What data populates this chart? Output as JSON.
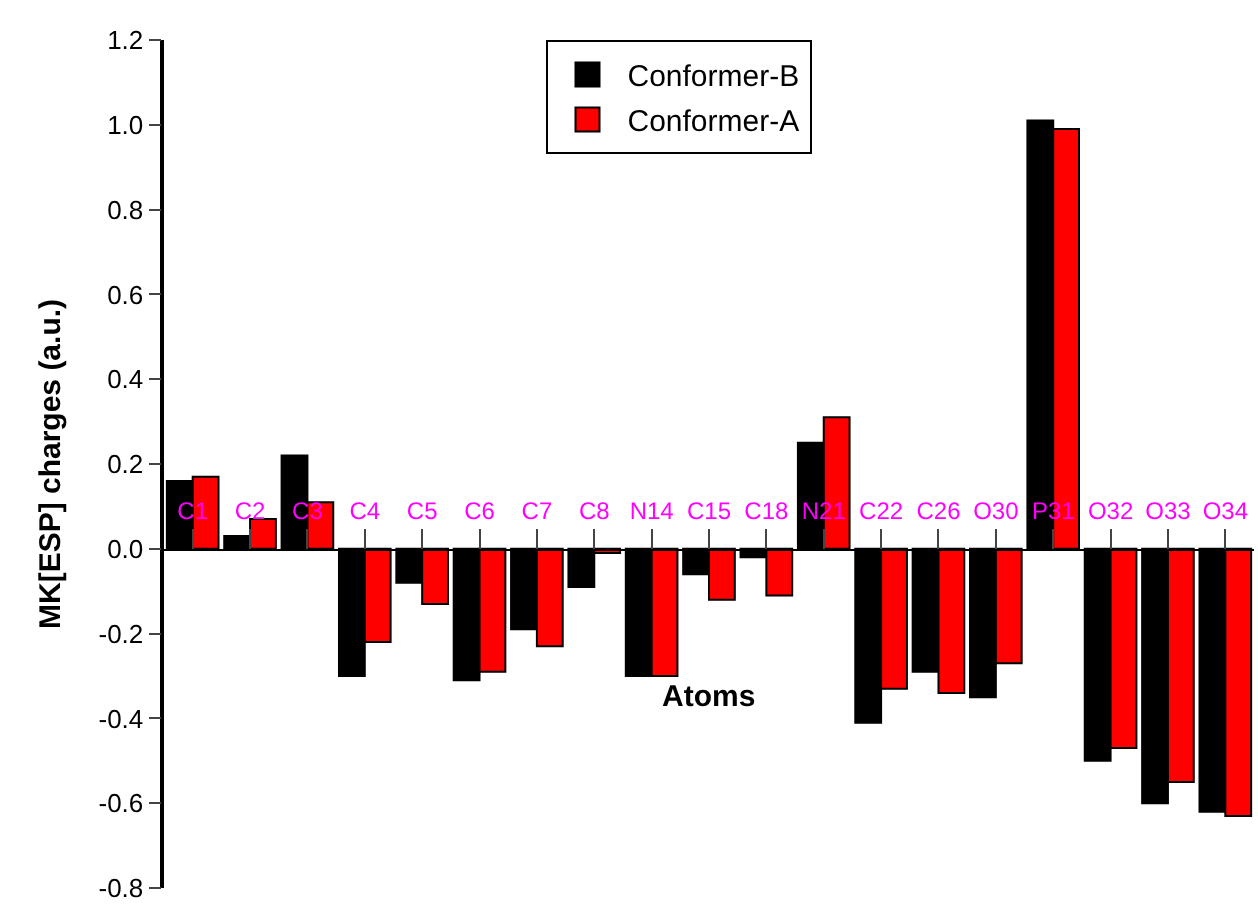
{
  "chart_data": {
    "type": "bar",
    "xlabel": "Atoms",
    "ylabel": "MK[ESP] charges (a.u.)",
    "categories": [
      "C1",
      "C2",
      "C3",
      "C4",
      "C5",
      "C6",
      "C7",
      "C8",
      "N14",
      "C15",
      "C18",
      "N21",
      "C22",
      "C26",
      "O30",
      "P31",
      "O32",
      "O33",
      "O34"
    ],
    "series": [
      {
        "name": "Conformer-B",
        "color": "#000000",
        "values": [
          0.16,
          0.03,
          0.22,
          -0.3,
          -0.08,
          -0.31,
          -0.19,
          -0.09,
          -0.3,
          -0.06,
          -0.02,
          0.25,
          -0.41,
          -0.29,
          -0.35,
          1.01,
          -0.5,
          -0.6,
          -0.62
        ]
      },
      {
        "name": "Conformer-A",
        "color": "#ff0000",
        "values": [
          0.17,
          0.07,
          0.11,
          -0.22,
          -0.13,
          -0.29,
          -0.23,
          -0.01,
          -0.3,
          -0.12,
          -0.11,
          0.31,
          -0.33,
          -0.34,
          -0.27,
          0.99,
          -0.47,
          -0.55,
          -0.63
        ]
      }
    ],
    "ylim": [
      -0.8,
      1.2
    ],
    "yticks": [
      {
        "value": -0.8,
        "label": "-0.8"
      },
      -0.6,
      -0.4,
      -0.2,
      {
        "value": 0,
        "label": "0.0"
      },
      0.2,
      0.4,
      0.6,
      0.8,
      {
        "value": 1,
        "label": "1.0"
      },
      1.2
    ],
    "legend": "top"
  }
}
